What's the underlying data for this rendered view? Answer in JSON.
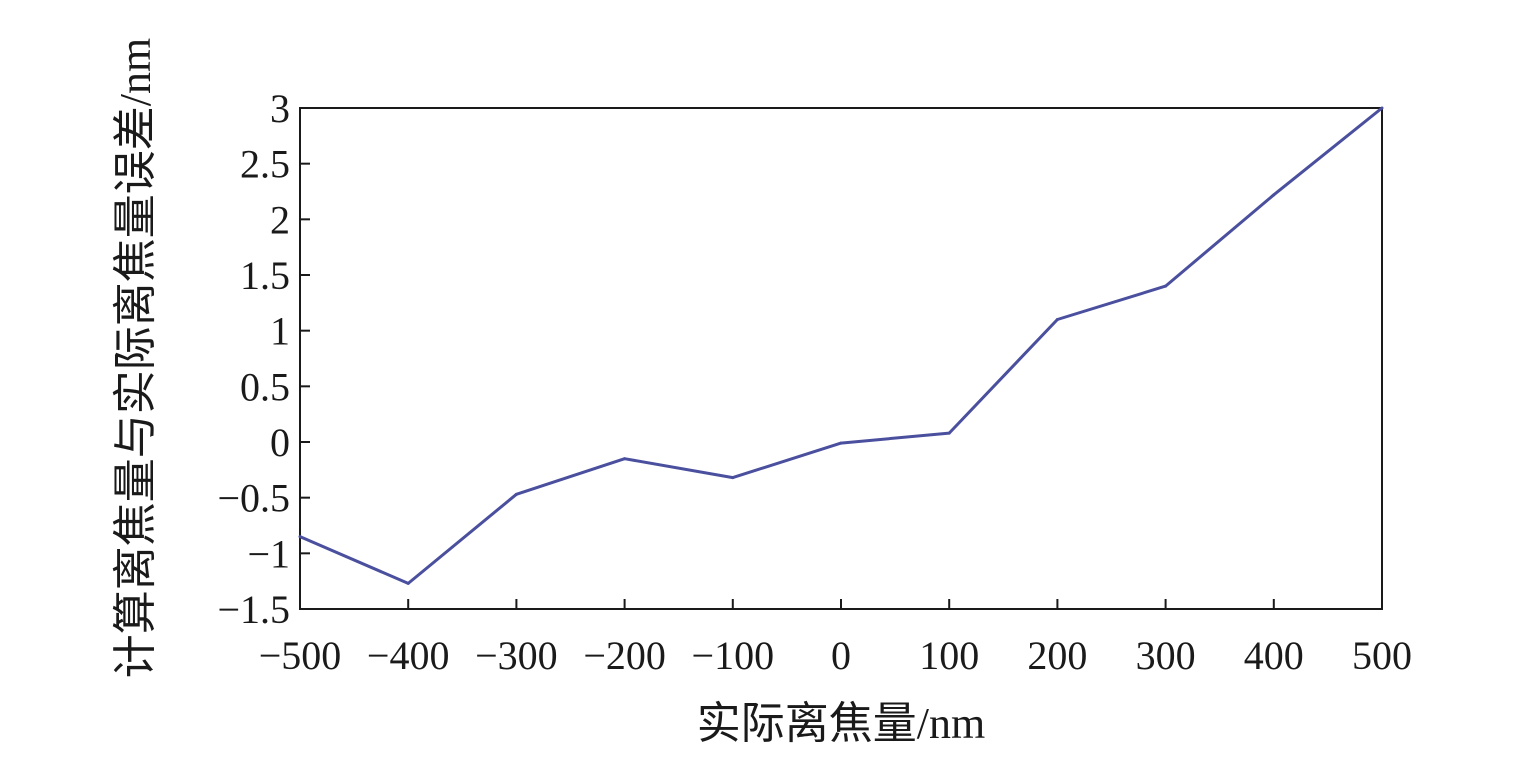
{
  "chart_data": {
    "type": "line",
    "xlabel": "实际离焦量/nm",
    "ylabel": "计算离焦量与实际离焦量误差/nm",
    "xlim": [
      -500,
      500
    ],
    "ylim": [
      -1.5,
      3
    ],
    "x_ticks": [
      -500,
      -400,
      -300,
      -200,
      -100,
      0,
      100,
      200,
      300,
      400,
      500
    ],
    "x_tick_labels": [
      "−500",
      "−400",
      "−300",
      "−200",
      "−100",
      "0",
      "100",
      "200",
      "300",
      "400",
      "500"
    ],
    "y_ticks": [
      -1.5,
      -1,
      -0.5,
      0,
      0.5,
      1,
      1.5,
      2,
      2.5,
      3
    ],
    "y_tick_labels": [
      "−1.5",
      "−1",
      "−0.5",
      "0",
      "0.5",
      "1",
      "1.5",
      "2",
      "2.5",
      "3"
    ],
    "grid": false,
    "series": [
      {
        "color": "#4a4f9e",
        "x": [
          -500,
          -400,
          -300,
          -200,
          -100,
          0,
          100,
          200,
          300,
          400,
          500
        ],
        "y": [
          -0.85,
          -1.27,
          -0.47,
          -0.15,
          -0.32,
          -0.01,
          0.08,
          1.1,
          1.4,
          2.22,
          3.0
        ]
      }
    ]
  }
}
